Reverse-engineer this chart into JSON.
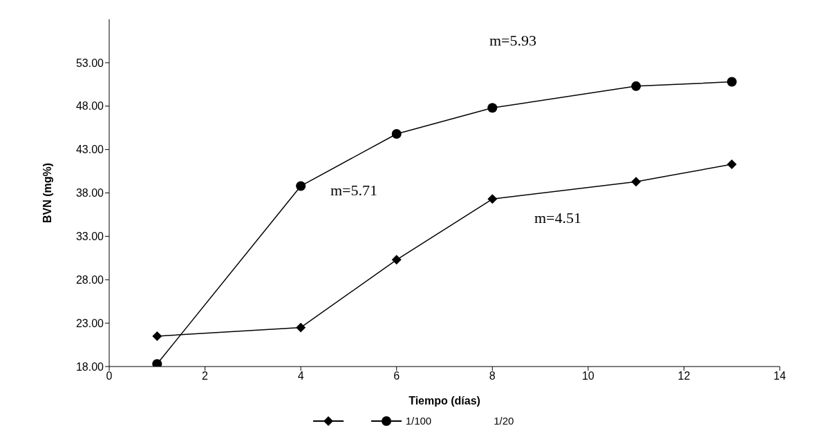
{
  "chart_data": {
    "type": "line",
    "xlabel": "Tiempo (días)",
    "ylabel": "BVN (mg%)",
    "xlim": [
      0,
      14
    ],
    "xticks": [
      0,
      2,
      4,
      6,
      8,
      10,
      12,
      14
    ],
    "ylim": [
      18,
      58
    ],
    "yticks": [
      {
        "value": 18,
        "label": "18.00"
      },
      {
        "value": 23,
        "label": "23.00"
      },
      {
        "value": 28,
        "label": "28.00"
      },
      {
        "value": 33,
        "label": "33.00"
      },
      {
        "value": 38,
        "label": "38.00"
      },
      {
        "value": 43,
        "label": "43.00"
      },
      {
        "value": 48,
        "label": "48.00"
      },
      {
        "value": 53,
        "label": "53.00"
      }
    ],
    "grid": false,
    "legend": "bottom",
    "series": [
      {
        "color": "#000000",
        "marker": "diamond",
        "x": [
          1,
          4,
          6,
          8,
          11,
          13
        ],
        "values": [
          21.5,
          22.5,
          30.3,
          37.3,
          39.3,
          41.3
        ]
      },
      {
        "name": "1/100",
        "color": "#000000",
        "marker": "circle",
        "x": [
          1,
          4,
          6,
          8,
          11,
          13
        ],
        "values": [
          18.3,
          38.8,
          44.8,
          47.8,
          50.3,
          50.8
        ]
      }
    ],
    "annotations": [
      "m=5.93",
      "m=5.71",
      "m=4.51",
      "1/20"
    ]
  }
}
